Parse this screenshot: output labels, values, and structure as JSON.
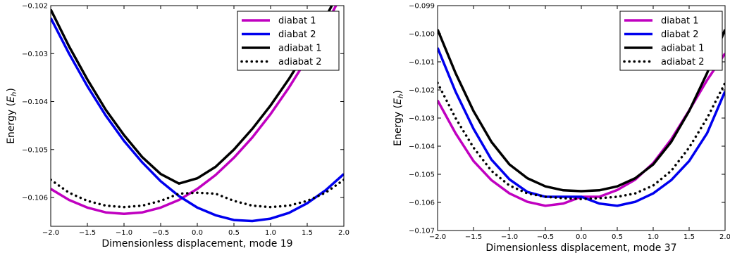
{
  "chart_data": [
    {
      "type": "line",
      "xlabel": "Dimensionless displacement, mode 19",
      "ylabel": "Energy (E_h)",
      "xlim": [
        -2.0,
        2.0
      ],
      "ylim": [
        -0.1066,
        -0.102
      ],
      "xticks": [
        "−2.0",
        "−1.5",
        "−1.0",
        "−0.5",
        "0.0",
        "0.5",
        "1.0",
        "1.5",
        "2.0"
      ],
      "yticks": [
        "−0.102",
        "−0.103",
        "−0.104",
        "−0.105",
        "−0.106"
      ],
      "ytick_values": [
        -0.102,
        -0.103,
        -0.104,
        -0.105,
        -0.106
      ],
      "grid": false,
      "legend_position": "top-right",
      "series": [
        {
          "name": "diabat 1",
          "color": "#c000c0",
          "style": "solid",
          "x": [
            -2.0,
            -1.75,
            -1.5,
            -1.25,
            -1.0,
            -0.75,
            -0.5,
            -0.25,
            0.0,
            0.25,
            0.5,
            0.75,
            1.0,
            1.25,
            1.5,
            1.75,
            2.0
          ],
          "y": [
            -0.10582,
            -0.10605,
            -0.10621,
            -0.10631,
            -0.10634,
            -0.10631,
            -0.10621,
            -0.10605,
            -0.10582,
            -0.10553,
            -0.10517,
            -0.10475,
            -0.10426,
            -0.10371,
            -0.1031,
            -0.10242,
            -0.10168
          ]
        },
        {
          "name": "diabat 2",
          "color": "#0000ee",
          "style": "solid",
          "x": [
            -2.0,
            -1.75,
            -1.5,
            -1.25,
            -1.0,
            -0.75,
            -0.5,
            -0.25,
            0.0,
            0.25,
            0.5,
            0.75,
            1.0,
            1.25,
            1.5,
            1.75,
            2.0
          ],
          "y": [
            -0.10226,
            -0.103,
            -0.10368,
            -0.10429,
            -0.10482,
            -0.10527,
            -0.10566,
            -0.10597,
            -0.10621,
            -0.10637,
            -0.10647,
            -0.10649,
            -0.10644,
            -0.10632,
            -0.10612,
            -0.10585,
            -0.10551
          ]
        },
        {
          "name": "adiabat 1",
          "color": "#000000",
          "style": "solid",
          "x": [
            -2.0,
            -1.75,
            -1.5,
            -1.25,
            -1.0,
            -0.75,
            -0.5,
            -0.25,
            0.0,
            0.25,
            0.5,
            0.75,
            1.0,
            1.25,
            1.5,
            1.75,
            2.0
          ],
          "y": [
            -0.10208,
            -0.10285,
            -0.10354,
            -0.10417,
            -0.1047,
            -0.10516,
            -0.10551,
            -0.10571,
            -0.1056,
            -0.10536,
            -0.105,
            -0.10457,
            -0.10408,
            -0.10353,
            -0.10292,
            -0.10225,
            -0.10151
          ]
        },
        {
          "name": "adiabat 2",
          "color": "#000000",
          "style": "dotted",
          "x": [
            -2.0,
            -1.75,
            -1.5,
            -1.25,
            -1.0,
            -0.75,
            -0.5,
            -0.25,
            0.0,
            0.25,
            0.5,
            0.75,
            1.0,
            1.25,
            1.5,
            1.75,
            2.0
          ],
          "y": [
            -0.10563,
            -0.1059,
            -0.10607,
            -0.10617,
            -0.1062,
            -0.10617,
            -0.10607,
            -0.10592,
            -0.1059,
            -0.10592,
            -0.10607,
            -0.10617,
            -0.1062,
            -0.10617,
            -0.10607,
            -0.1059,
            -0.10563
          ]
        }
      ]
    },
    {
      "type": "line",
      "xlabel": "Dimensionless displacement, mode 37",
      "ylabel": "Energy (E_h)",
      "xlim": [
        -2.0,
        2.0
      ],
      "ylim": [
        -0.107,
        -0.099
      ],
      "xticks": [
        "−2.0",
        "−1.5",
        "−1.0",
        "−0.5",
        "0.0",
        "0.5",
        "1.0",
        "1.5",
        "2.0"
      ],
      "yticks": [
        "−0.099",
        "−0.100",
        "−0.101",
        "−0.102",
        "−0.103",
        "−0.104",
        "−0.105",
        "−0.106",
        "−0.107"
      ],
      "ytick_values": [
        -0.099,
        -0.1,
        -0.101,
        -0.102,
        -0.103,
        -0.104,
        -0.105,
        -0.106,
        -0.107
      ],
      "grid": false,
      "legend_position": "top-right",
      "series": [
        {
          "name": "diabat 1",
          "color": "#c000c0",
          "style": "solid",
          "x": [
            -2.0,
            -1.75,
            -1.5,
            -1.25,
            -1.0,
            -0.75,
            -0.5,
            -0.25,
            0.0,
            0.25,
            0.5,
            0.75,
            1.0,
            1.25,
            1.5,
            1.75,
            2.0
          ],
          "y": [
            -0.10237,
            -0.10354,
            -0.10453,
            -0.10521,
            -0.10568,
            -0.10598,
            -0.10612,
            -0.10604,
            -0.1058,
            -0.1058,
            -0.10556,
            -0.10519,
            -0.1046,
            -0.10376,
            -0.10273,
            -0.10165,
            -0.1007
          ]
        },
        {
          "name": "diabat 2",
          "color": "#0000ee",
          "style": "solid",
          "x": [
            -2.0,
            -1.75,
            -1.5,
            -1.25,
            -1.0,
            -0.75,
            -0.5,
            -0.25,
            0.0,
            0.25,
            0.5,
            0.75,
            1.0,
            1.25,
            1.5,
            1.75,
            2.0
          ],
          "y": [
            -0.1005,
            -0.10206,
            -0.10338,
            -0.10448,
            -0.10518,
            -0.10563,
            -0.1058,
            -0.1058,
            -0.1058,
            -0.10604,
            -0.10612,
            -0.10598,
            -0.10568,
            -0.10521,
            -0.10453,
            -0.10354,
            -0.10205
          ]
        },
        {
          "name": "adiabat 1",
          "color": "#000000",
          "style": "solid",
          "x": [
            -2.0,
            -1.75,
            -1.5,
            -1.25,
            -1.0,
            -0.75,
            -0.5,
            -0.25,
            0.0,
            0.25,
            0.5,
            0.75,
            1.0,
            1.25,
            1.5,
            1.75,
            2.0
          ],
          "y": [
            -0.09985,
            -0.1014,
            -0.10275,
            -0.10385,
            -0.10465,
            -0.10514,
            -0.10543,
            -0.10557,
            -0.1056,
            -0.10557,
            -0.10543,
            -0.10514,
            -0.10465,
            -0.10385,
            -0.10275,
            -0.1014,
            -0.09985
          ]
        },
        {
          "name": "adiabat 2",
          "color": "#000000",
          "style": "dotted",
          "x": [
            -2.0,
            -1.75,
            -1.5,
            -1.25,
            -1.0,
            -0.75,
            -0.5,
            -0.25,
            0.0,
            0.25,
            0.5,
            0.75,
            1.0,
            1.25,
            1.5,
            1.75,
            2.0
          ],
          "y": [
            -0.10175,
            -0.103,
            -0.10405,
            -0.10488,
            -0.1054,
            -0.10568,
            -0.1058,
            -0.10585,
            -0.10588,
            -0.10585,
            -0.1058,
            -0.10568,
            -0.1054,
            -0.10488,
            -0.10405,
            -0.103,
            -0.10175
          ]
        }
      ]
    }
  ]
}
